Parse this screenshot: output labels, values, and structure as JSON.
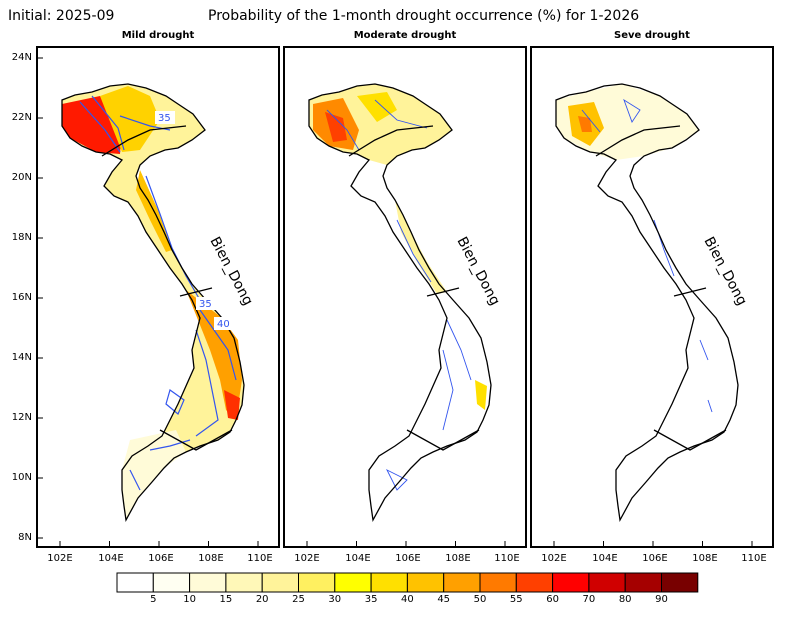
{
  "header": {
    "initial": "Initial: 2025-09",
    "title": "Probability of the 1-month drought occurrence (%) for 1-2026"
  },
  "panels": [
    {
      "title": "Mild drought",
      "sea_label": "Bien_Dong",
      "contour_labels": [
        "35",
        "35",
        "40"
      ]
    },
    {
      "title": "Moderate drought",
      "sea_label": "Bien_Dong"
    },
    {
      "title": "Seve drought",
      "sea_label": "Bien_Dong"
    }
  ],
  "axes": {
    "lat_labels": [
      "24N",
      "22N",
      "20N",
      "18N",
      "16N",
      "14N",
      "12N",
      "10N",
      "8N"
    ],
    "lon_labels": [
      "102E",
      "104E",
      "106E",
      "108E",
      "110E"
    ]
  },
  "colorbar": {
    "labels": [
      "5",
      "10",
      "15",
      "20",
      "25",
      "30",
      "35",
      "40",
      "45",
      "50",
      "55",
      "60",
      "70",
      "80",
      "90"
    ],
    "colors": [
      "#ffffff",
      "#fffff2",
      "#fffbd8",
      "#fff8b8",
      "#fff39a",
      "#fff060",
      "#ffff00",
      "#ffe000",
      "#ffc200",
      "#ffa000",
      "#ff7a00",
      "#ff4000",
      "#ff0000",
      "#d00000",
      "#a50000",
      "#780000"
    ]
  },
  "palette": {
    "contour": "#3355ee",
    "land_bg": "#ffffff",
    "frame": "#000000"
  }
}
